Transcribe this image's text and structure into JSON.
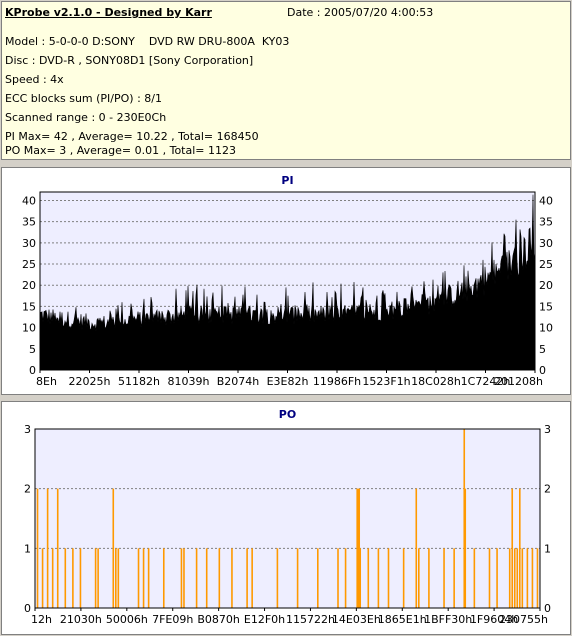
{
  "info": {
    "title": "KProbe v2.1.0 - Designed by Karr",
    "date": "Date : 2005/07/20 4:00:53",
    "lines": [
      "Model : 5-0-0-0 D:SONY    DVD RW DRU-800A  KY03",
      "Disc : DVD-R , SONY08D1 [Sony Corporation]",
      "Speed : 4x",
      "ECC blocks sum (PI/PO) : 8/1",
      "Scanned range : 0 - 230E0Ch",
      "PI Max= 42 , Average= 10.22 , Total= 168450",
      "PO Max= 3 , Average= 0.01 , Total= 1123"
    ]
  },
  "colors": {
    "pi_fill": "#000000",
    "po_bar": "#ff9900",
    "plot_bg": "#eeeeff",
    "grid": "#808080",
    "title": "#000080"
  },
  "chart_data": [
    {
      "type": "area",
      "title": "PI",
      "ylim": [
        0,
        42
      ],
      "yticks": [
        0,
        5,
        10,
        15,
        20,
        25,
        30,
        35,
        40
      ],
      "xtick_labels": [
        "8Eh",
        "22025h",
        "51182h",
        "81039h",
        "B2074h",
        "E3E82h",
        "11986Fh",
        "1523F1h",
        "18C028h",
        "1C7242h",
        "201208h"
      ],
      "grid": true,
      "envelope": [
        {
          "x": 0.0,
          "avg": 13,
          "peak": 21
        },
        {
          "x": 0.05,
          "avg": 12,
          "peak": 18
        },
        {
          "x": 0.12,
          "avg": 11,
          "peak": 16
        },
        {
          "x": 0.2,
          "avg": 12,
          "peak": 17
        },
        {
          "x": 0.3,
          "avg": 13,
          "peak": 20
        },
        {
          "x": 0.4,
          "avg": 13,
          "peak": 21
        },
        {
          "x": 0.5,
          "avg": 13,
          "peak": 21
        },
        {
          "x": 0.6,
          "avg": 13,
          "peak": 21
        },
        {
          "x": 0.7,
          "avg": 14,
          "peak": 21
        },
        {
          "x": 0.8,
          "avg": 16,
          "peak": 23
        },
        {
          "x": 0.88,
          "avg": 20,
          "peak": 28
        },
        {
          "x": 0.94,
          "avg": 24,
          "peak": 33
        },
        {
          "x": 1.0,
          "avg": 30,
          "peak": 42
        }
      ]
    },
    {
      "type": "bar",
      "title": "PO",
      "ylim": [
        0,
        3
      ],
      "yticks": [
        0,
        1,
        2,
        3
      ],
      "xtick_labels": [
        "12h",
        "21030h",
        "50006h",
        "7FE09h",
        "B0870h",
        "E12F0h",
        "115722h",
        "14E03Eh",
        "1865E1h",
        "1BFF30h",
        "1F9604h",
        "230755h"
      ],
      "grid": true,
      "spikes": [
        {
          "x": 0.005,
          "v": 2
        },
        {
          "x": 0.015,
          "v": 1
        },
        {
          "x": 0.025,
          "v": 2
        },
        {
          "x": 0.035,
          "v": 1
        },
        {
          "x": 0.045,
          "v": 2
        },
        {
          "x": 0.06,
          "v": 1
        },
        {
          "x": 0.075,
          "v": 1
        },
        {
          "x": 0.09,
          "v": 1
        },
        {
          "x": 0.12,
          "v": 1
        },
        {
          "x": 0.125,
          "v": 1
        },
        {
          "x": 0.155,
          "v": 2
        },
        {
          "x": 0.16,
          "v": 1
        },
        {
          "x": 0.165,
          "v": 1
        },
        {
          "x": 0.205,
          "v": 1
        },
        {
          "x": 0.215,
          "v": 1
        },
        {
          "x": 0.225,
          "v": 1
        },
        {
          "x": 0.255,
          "v": 1
        },
        {
          "x": 0.29,
          "v": 1
        },
        {
          "x": 0.295,
          "v": 1
        },
        {
          "x": 0.32,
          "v": 1
        },
        {
          "x": 0.34,
          "v": 1
        },
        {
          "x": 0.365,
          "v": 1
        },
        {
          "x": 0.39,
          "v": 1
        },
        {
          "x": 0.42,
          "v": 1
        },
        {
          "x": 0.43,
          "v": 1
        },
        {
          "x": 0.48,
          "v": 1
        },
        {
          "x": 0.52,
          "v": 1
        },
        {
          "x": 0.56,
          "v": 1
        },
        {
          "x": 0.6,
          "v": 1
        },
        {
          "x": 0.615,
          "v": 1
        },
        {
          "x": 0.638,
          "v": 2
        },
        {
          "x": 0.64,
          "v": 2
        },
        {
          "x": 0.642,
          "v": 2
        },
        {
          "x": 0.644,
          "v": 1
        },
        {
          "x": 0.66,
          "v": 1
        },
        {
          "x": 0.68,
          "v": 1
        },
        {
          "x": 0.7,
          "v": 1
        },
        {
          "x": 0.73,
          "v": 1
        },
        {
          "x": 0.755,
          "v": 2
        },
        {
          "x": 0.76,
          "v": 1
        },
        {
          "x": 0.78,
          "v": 1
        },
        {
          "x": 0.81,
          "v": 1
        },
        {
          "x": 0.83,
          "v": 1
        },
        {
          "x": 0.85,
          "v": 3
        },
        {
          "x": 0.852,
          "v": 2
        },
        {
          "x": 0.87,
          "v": 1
        },
        {
          "x": 0.9,
          "v": 1
        },
        {
          "x": 0.915,
          "v": 1
        },
        {
          "x": 0.94,
          "v": 1
        },
        {
          "x": 0.945,
          "v": 2
        },
        {
          "x": 0.95,
          "v": 1
        },
        {
          "x": 0.955,
          "v": 1
        },
        {
          "x": 0.96,
          "v": 2
        },
        {
          "x": 0.965,
          "v": 1
        },
        {
          "x": 0.975,
          "v": 1
        },
        {
          "x": 0.985,
          "v": 1
        },
        {
          "x": 0.995,
          "v": 1
        }
      ]
    }
  ]
}
